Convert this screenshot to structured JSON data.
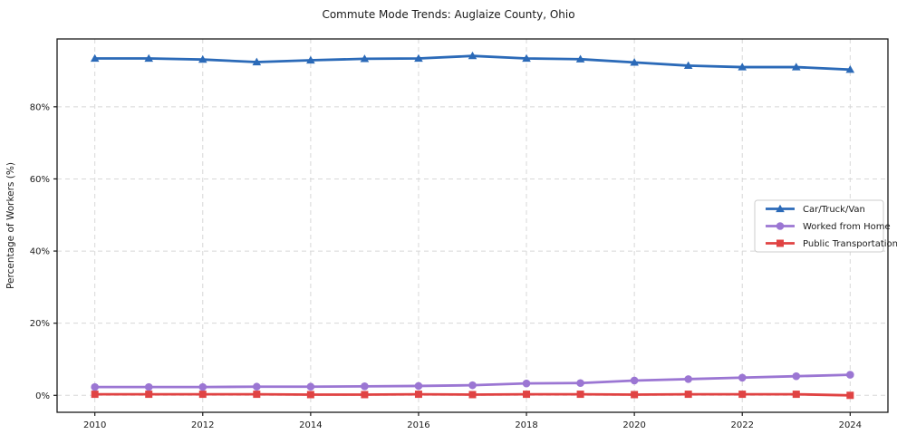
{
  "chart_data": {
    "type": "line",
    "title": "Commute Mode Trends: Auglaize County, Ohio",
    "xlabel": "",
    "ylabel": "Percentage of Workers (%)",
    "x": [
      2010,
      2011,
      2012,
      2013,
      2014,
      2015,
      2016,
      2017,
      2018,
      2019,
      2020,
      2021,
      2022,
      2023,
      2024
    ],
    "series": [
      {
        "name": "Car/Truck/Van",
        "marker": "triangle",
        "color": "#2b6ab8",
        "values": [
          93.4,
          93.4,
          93.1,
          92.4,
          92.9,
          93.3,
          93.4,
          94.1,
          93.4,
          93.2,
          92.3,
          91.4,
          91.0,
          91.0,
          90.3
        ]
      },
      {
        "name": "Worked from Home",
        "marker": "circle",
        "color": "#9b76d3",
        "values": [
          2.3,
          2.3,
          2.3,
          2.4,
          2.4,
          2.5,
          2.6,
          2.8,
          3.3,
          3.4,
          4.1,
          4.5,
          4.9,
          5.3,
          5.7
        ]
      },
      {
        "name": "Public Transportation",
        "marker": "square",
        "color": "#e04343",
        "values": [
          0.3,
          0.3,
          0.3,
          0.3,
          0.2,
          0.2,
          0.3,
          0.2,
          0.3,
          0.3,
          0.2,
          0.3,
          0.3,
          0.3,
          0.0
        ]
      }
    ],
    "x_ticks": [
      2010,
      2012,
      2014,
      2016,
      2018,
      2020,
      2022,
      2024
    ],
    "x_tick_labels": [
      "2010",
      "2012",
      "2014",
      "2016",
      "2018",
      "2020",
      "2022",
      "2024"
    ],
    "y_ticks": [
      0,
      20,
      40,
      60,
      80
    ],
    "y_tick_labels": [
      "0%",
      "20%",
      "40%",
      "60%",
      "80%"
    ],
    "xlim": [
      2009.3,
      2024.7
    ],
    "ylim": [
      -4.7,
      98.8
    ],
    "grid": true,
    "legend_position": "center-right"
  },
  "colors": {
    "background": "#ffffff",
    "grid": "#d8d8d8",
    "frame": "#1a1a1a",
    "text": "#1a1a1a",
    "legend_border": "#cccccc",
    "legend_fill": "#ffffff"
  }
}
